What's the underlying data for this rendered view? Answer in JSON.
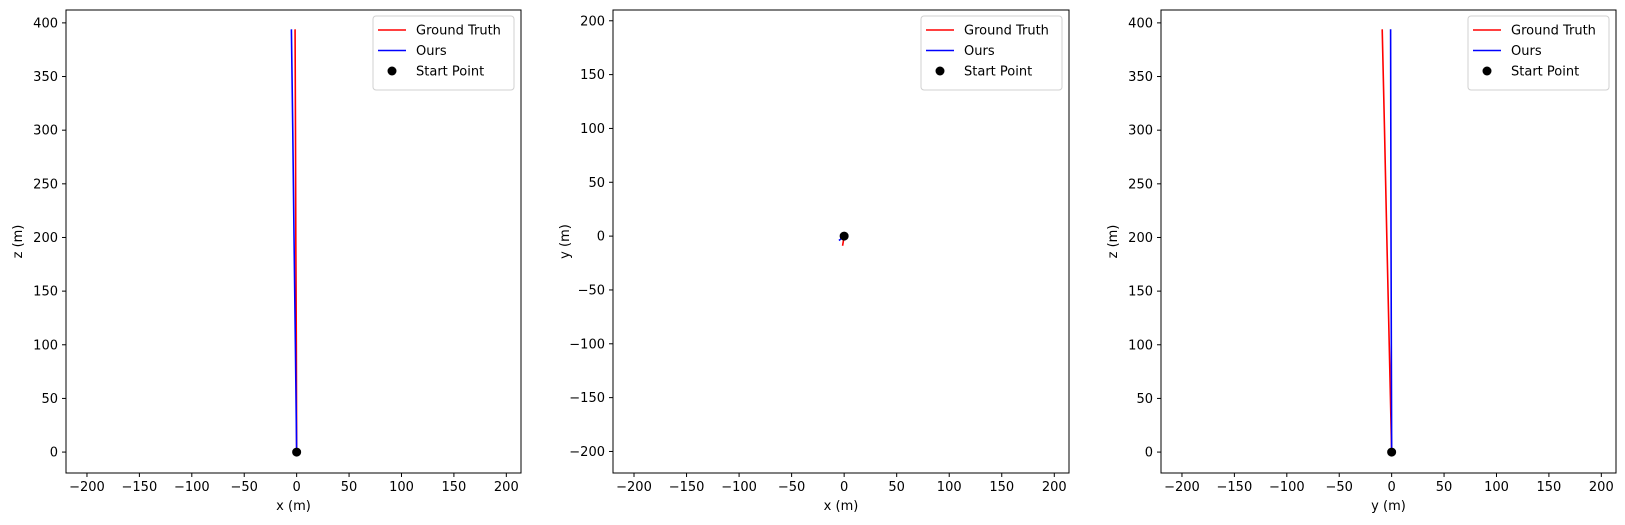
{
  "chart_data": [
    {
      "type": "line",
      "xlabel": "x (m)",
      "ylabel": "z (m)",
      "xlim": [
        -220,
        214
      ],
      "ylim": [
        -19.5,
        412
      ],
      "xticks": [
        -200,
        -150,
        -100,
        -50,
        0,
        50,
        100,
        150,
        200
      ],
      "yticks": [
        0,
        50,
        100,
        150,
        200,
        250,
        300,
        350,
        400
      ],
      "xtick_labels": [
        "−200",
        "−150",
        "−100",
        "−50",
        "0",
        "50",
        "100",
        "150",
        "200"
      ],
      "ytick_labels": [
        "0",
        "50",
        "100",
        "150",
        "200",
        "250",
        "300",
        "350",
        "400"
      ],
      "legend_position": "top-right",
      "series": [
        {
          "name": "Ground Truth",
          "color": "#ff0000",
          "x": [
            0,
            -0.3,
            -0.8,
            -1.1,
            -1.5
          ],
          "y": [
            0,
            100,
            200,
            300,
            394
          ]
        },
        {
          "name": "Ours",
          "color": "#0000ff",
          "x": [
            0,
            -1.2,
            -2.5,
            -3.7,
            -5
          ],
          "y": [
            0,
            100,
            200,
            300,
            394
          ]
        },
        {
          "name": "Start Point",
          "color": "#000000",
          "marker": "o",
          "x": [
            0
          ],
          "y": [
            0
          ]
        }
      ]
    },
    {
      "type": "line",
      "xlabel": "x (m)",
      "ylabel": "y (m)",
      "xlim": [
        -220,
        214
      ],
      "ylim": [
        -220,
        210
      ],
      "xticks": [
        -200,
        -150,
        -100,
        -50,
        0,
        50,
        100,
        150,
        200
      ],
      "yticks": [
        -200,
        -150,
        -100,
        -50,
        0,
        50,
        100,
        150,
        200
      ],
      "xtick_labels": [
        "−200",
        "−150",
        "−100",
        "−50",
        "0",
        "50",
        "100",
        "150",
        "200"
      ],
      "ytick_labels": [
        "−200",
        "−150",
        "−100",
        "−50",
        "0",
        "50",
        "100",
        "150",
        "200"
      ],
      "legend_position": "top-right",
      "series": [
        {
          "name": "Ground Truth",
          "color": "#ff0000",
          "x": [
            0,
            -0.5,
            -1.0,
            -1.5
          ],
          "y": [
            0,
            -3,
            -6,
            -9
          ]
        },
        {
          "name": "Ours",
          "color": "#0000ff",
          "x": [
            0,
            -2,
            -3.5,
            -5
          ],
          "y": [
            0,
            -1.5,
            -3,
            -4
          ]
        },
        {
          "name": "Start Point",
          "color": "#000000",
          "marker": "o",
          "x": [
            0
          ],
          "y": [
            0
          ]
        }
      ]
    },
    {
      "type": "line",
      "xlabel": "y (m)",
      "ylabel": "z (m)",
      "xlim": [
        -220,
        214
      ],
      "ylim": [
        -19.5,
        412
      ],
      "xticks": [
        -200,
        -150,
        -100,
        -50,
        0,
        50,
        100,
        150,
        200
      ],
      "yticks": [
        0,
        50,
        100,
        150,
        200,
        250,
        300,
        350,
        400
      ],
      "xtick_labels": [
        "−200",
        "−150",
        "−100",
        "−50",
        "0",
        "50",
        "100",
        "150",
        "200"
      ],
      "ytick_labels": [
        "0",
        "50",
        "100",
        "150",
        "200",
        "250",
        "300",
        "350",
        "400"
      ],
      "legend_position": "top-right",
      "series": [
        {
          "name": "Ground Truth",
          "color": "#ff0000",
          "x": [
            0,
            -2.3,
            -4.6,
            -6.8,
            -9
          ],
          "y": [
            0,
            100,
            200,
            300,
            394
          ]
        },
        {
          "name": "Ours",
          "color": "#0000ff",
          "x": [
            0,
            -0.3,
            -0.6,
            -0.8,
            -1
          ],
          "y": [
            0,
            100,
            200,
            300,
            394
          ]
        },
        {
          "name": "Start Point",
          "color": "#000000",
          "marker": "o",
          "x": [
            0
          ],
          "y": [
            0
          ]
        }
      ]
    }
  ]
}
